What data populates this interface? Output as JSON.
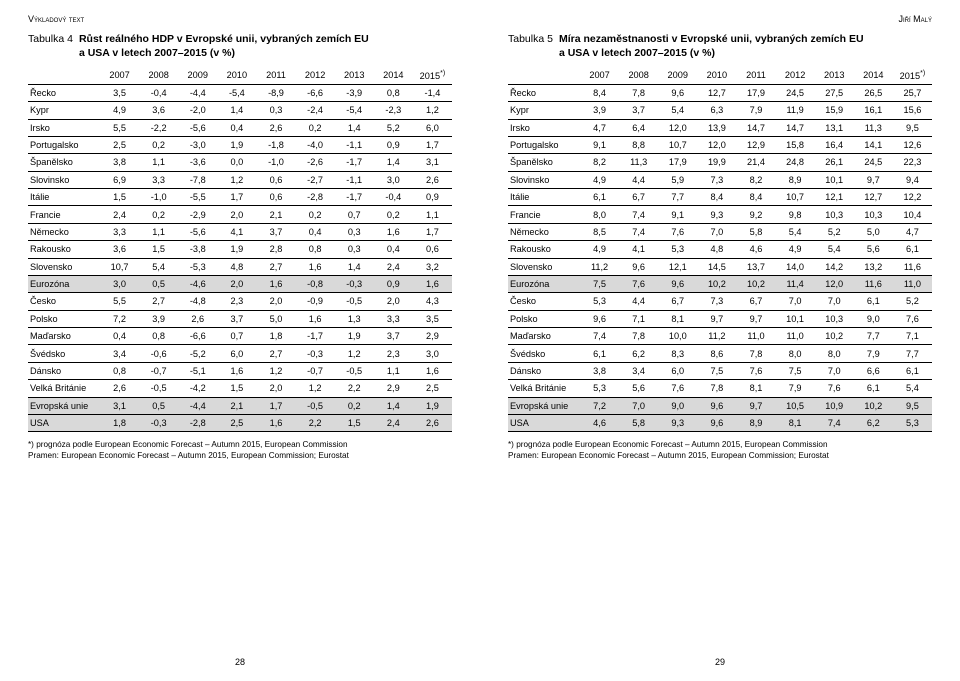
{
  "left": {
    "header": "Výkladový text",
    "caption_no": "Tabulka 4",
    "caption_title_l1": "Růst reálného HDP v Evropské unii, vybraných zemích EU",
    "caption_title_l2": "a USA v letech 2007–2015 (v %)",
    "years": [
      "2007",
      "2008",
      "2009",
      "2010",
      "2011",
      "2012",
      "2013",
      "2014",
      "2015*)"
    ],
    "rows": [
      {
        "label": "Řecko",
        "v": [
          "3,5",
          "-0,4",
          "-4,4",
          "-5,4",
          "-8,9",
          "-6,6",
          "-3,9",
          "0,8",
          "-1,4"
        ]
      },
      {
        "label": "Kypr",
        "v": [
          "4,9",
          "3,6",
          "-2,0",
          "1,4",
          "0,3",
          "-2,4",
          "-5,4",
          "-2,3",
          "1,2"
        ]
      },
      {
        "label": "Irsko",
        "v": [
          "5,5",
          "-2,2",
          "-5,6",
          "0,4",
          "2,6",
          "0,2",
          "1,4",
          "5,2",
          "6,0"
        ]
      },
      {
        "label": "Portugalsko",
        "v": [
          "2,5",
          "0,2",
          "-3,0",
          "1,9",
          "-1,8",
          "-4,0",
          "-1,1",
          "0,9",
          "1,7"
        ]
      },
      {
        "label": "Španělsko",
        "v": [
          "3,8",
          "1,1",
          "-3,6",
          "0,0",
          "-1,0",
          "-2,6",
          "-1,7",
          "1,4",
          "3,1"
        ]
      },
      {
        "label": "Slovinsko",
        "v": [
          "6,9",
          "3,3",
          "-7,8",
          "1,2",
          "0,6",
          "-2,7",
          "-1,1",
          "3,0",
          "2,6"
        ]
      },
      {
        "label": "Itálie",
        "v": [
          "1,5",
          "-1,0",
          "-5,5",
          "1,7",
          "0,6",
          "-2,8",
          "-1,7",
          "-0,4",
          "0,9"
        ]
      },
      {
        "label": "Francie",
        "v": [
          "2,4",
          "0,2",
          "-2,9",
          "2,0",
          "2,1",
          "0,2",
          "0,7",
          "0,2",
          "1,1"
        ]
      },
      {
        "label": "Německo",
        "v": [
          "3,3",
          "1,1",
          "-5,6",
          "4,1",
          "3,7",
          "0,4",
          "0,3",
          "1,6",
          "1,7"
        ]
      },
      {
        "label": "Rakousko",
        "v": [
          "3,6",
          "1,5",
          "-3,8",
          "1,9",
          "2,8",
          "0,8",
          "0,3",
          "0,4",
          "0,6"
        ]
      },
      {
        "label": "Slovensko",
        "v": [
          "10,7",
          "5,4",
          "-5,3",
          "4,8",
          "2,7",
          "1,6",
          "1,4",
          "2,4",
          "3,2"
        ]
      },
      {
        "label": "Eurozóna",
        "v": [
          "3,0",
          "0,5",
          "-4,6",
          "2,0",
          "1,6",
          "-0,8",
          "-0,3",
          "0,9",
          "1,6"
        ],
        "hl": true
      },
      {
        "label": "Česko",
        "v": [
          "5,5",
          "2,7",
          "-4,8",
          "2,3",
          "2,0",
          "-0,9",
          "-0,5",
          "2,0",
          "4,3"
        ]
      },
      {
        "label": "Polsko",
        "v": [
          "7,2",
          "3,9",
          "2,6",
          "3,7",
          "5,0",
          "1,6",
          "1,3",
          "3,3",
          "3,5"
        ]
      },
      {
        "label": "Maďarsko",
        "v": [
          "0,4",
          "0,8",
          "-6,6",
          "0,7",
          "1,8",
          "-1,7",
          "1,9",
          "3,7",
          "2,9"
        ]
      },
      {
        "label": "Švédsko",
        "v": [
          "3,4",
          "-0,6",
          "-5,2",
          "6,0",
          "2,7",
          "-0,3",
          "1,2",
          "2,3",
          "3,0"
        ]
      },
      {
        "label": "Dánsko",
        "v": [
          "0,8",
          "-0,7",
          "-5,1",
          "1,6",
          "1,2",
          "-0,7",
          "-0,5",
          "1,1",
          "1,6"
        ]
      },
      {
        "label": "Velká Británie",
        "v": [
          "2,6",
          "-0,5",
          "-4,2",
          "1,5",
          "2,0",
          "1,2",
          "2,2",
          "2,9",
          "2,5"
        ]
      },
      {
        "label": "Evropská unie",
        "v": [
          "3,1",
          "0,5",
          "-4,4",
          "2,1",
          "1,7",
          "-0,5",
          "0,2",
          "1,4",
          "1,9"
        ],
        "hl": true
      },
      {
        "label": "USA",
        "v": [
          "1,8",
          "-0,3",
          "-2,8",
          "2,5",
          "1,6",
          "2,2",
          "1,5",
          "2,4",
          "2,6"
        ],
        "hl": true
      }
    ],
    "foot1": "*) prognóza podle European Economic Forecast – Autumn 2015, European Commission",
    "foot2": "Pramen: European Economic Forecast – Autumn 2015, European Commission; Eurostat",
    "pagenum": "28"
  },
  "right": {
    "header": "Jiří Malý",
    "caption_no": "Tabulka 5",
    "caption_title_l1": "Míra nezaměstnanosti v Evropské unii, vybraných zemích EU",
    "caption_title_l2": "a USA v letech 2007–2015 (v %)",
    "years": [
      "2007",
      "2008",
      "2009",
      "2010",
      "2011",
      "2012",
      "2013",
      "2014",
      "2015*)"
    ],
    "rows": [
      {
        "label": "Řecko",
        "v": [
          "8,4",
          "7,8",
          "9,6",
          "12,7",
          "17,9",
          "24,5",
          "27,5",
          "26,5",
          "25,7"
        ]
      },
      {
        "label": "Kypr",
        "v": [
          "3,9",
          "3,7",
          "5,4",
          "6,3",
          "7,9",
          "11,9",
          "15,9",
          "16,1",
          "15,6"
        ]
      },
      {
        "label": "Irsko",
        "v": [
          "4,7",
          "6,4",
          "12,0",
          "13,9",
          "14,7",
          "14,7",
          "13,1",
          "11,3",
          "9,5"
        ]
      },
      {
        "label": "Portugalsko",
        "v": [
          "9,1",
          "8,8",
          "10,7",
          "12,0",
          "12,9",
          "15,8",
          "16,4",
          "14,1",
          "12,6"
        ]
      },
      {
        "label": "Španělsko",
        "v": [
          "8,2",
          "11,3",
          "17,9",
          "19,9",
          "21,4",
          "24,8",
          "26,1",
          "24,5",
          "22,3"
        ]
      },
      {
        "label": "Slovinsko",
        "v": [
          "4,9",
          "4,4",
          "5,9",
          "7,3",
          "8,2",
          "8,9",
          "10,1",
          "9,7",
          "9,4"
        ]
      },
      {
        "label": "Itálie",
        "v": [
          "6,1",
          "6,7",
          "7,7",
          "8,4",
          "8,4",
          "10,7",
          "12,1",
          "12,7",
          "12,2"
        ]
      },
      {
        "label": "Francie",
        "v": [
          "8,0",
          "7,4",
          "9,1",
          "9,3",
          "9,2",
          "9,8",
          "10,3",
          "10,3",
          "10,4"
        ]
      },
      {
        "label": "Německo",
        "v": [
          "8,5",
          "7,4",
          "7,6",
          "7,0",
          "5,8",
          "5,4",
          "5,2",
          "5,0",
          "4,7"
        ]
      },
      {
        "label": "Rakousko",
        "v": [
          "4,9",
          "4,1",
          "5,3",
          "4,8",
          "4,6",
          "4,9",
          "5,4",
          "5,6",
          "6,1"
        ]
      },
      {
        "label": "Slovensko",
        "v": [
          "11,2",
          "9,6",
          "12,1",
          "14,5",
          "13,7",
          "14,0",
          "14,2",
          "13,2",
          "11,6"
        ]
      },
      {
        "label": "Eurozóna",
        "v": [
          "7,5",
          "7,6",
          "9,6",
          "10,2",
          "10,2",
          "11,4",
          "12,0",
          "11,6",
          "11,0"
        ],
        "hl": true
      },
      {
        "label": "Česko",
        "v": [
          "5,3",
          "4,4",
          "6,7",
          "7,3",
          "6,7",
          "7,0",
          "7,0",
          "6,1",
          "5,2"
        ]
      },
      {
        "label": "Polsko",
        "v": [
          "9,6",
          "7,1",
          "8,1",
          "9,7",
          "9,7",
          "10,1",
          "10,3",
          "9,0",
          "7,6"
        ]
      },
      {
        "label": "Maďarsko",
        "v": [
          "7,4",
          "7,8",
          "10,0",
          "11,2",
          "11,0",
          "11,0",
          "10,2",
          "7,7",
          "7,1"
        ]
      },
      {
        "label": "Švédsko",
        "v": [
          "6,1",
          "6,2",
          "8,3",
          "8,6",
          "7,8",
          "8,0",
          "8,0",
          "7,9",
          "7,7"
        ]
      },
      {
        "label": "Dánsko",
        "v": [
          "3,8",
          "3,4",
          "6,0",
          "7,5",
          "7,6",
          "7,5",
          "7,0",
          "6,6",
          "6,1"
        ]
      },
      {
        "label": "Velká Británie",
        "v": [
          "5,3",
          "5,6",
          "7,6",
          "7,8",
          "8,1",
          "7,9",
          "7,6",
          "6,1",
          "5,4"
        ]
      },
      {
        "label": "Evropská unie",
        "v": [
          "7,2",
          "7,0",
          "9,0",
          "9,6",
          "9,7",
          "10,5",
          "10,9",
          "10,2",
          "9,5"
        ],
        "hl": true
      },
      {
        "label": "USA",
        "v": [
          "4,6",
          "5,8",
          "9,3",
          "9,6",
          "8,9",
          "8,1",
          "7,4",
          "6,2",
          "5,3"
        ],
        "hl": true
      }
    ],
    "foot1": "*) prognóza podle European Economic Forecast – Autumn 2015, European Commission",
    "foot2": "Pramen: European Economic Forecast – Autumn 2015, European Commission; Eurostat",
    "pagenum": "29"
  }
}
